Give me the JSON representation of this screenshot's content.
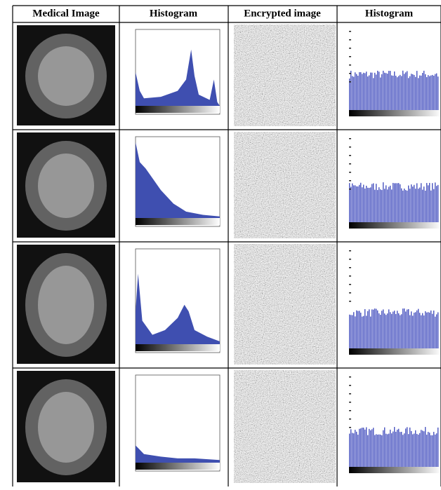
{
  "table": {
    "header": [
      "Medical Image",
      "Histogram",
      "Encrypted image",
      "Histogram"
    ]
  }
}
